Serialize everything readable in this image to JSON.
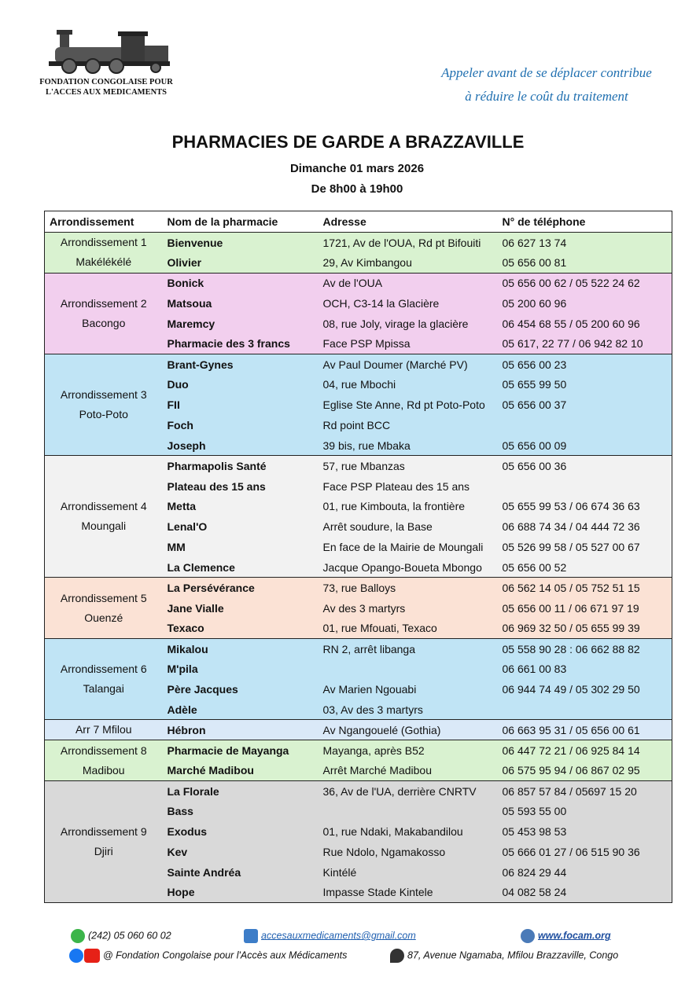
{
  "header": {
    "org_line1": "FONDATION CONGOLAISE POUR",
    "org_line2": "L'ACCES AUX MEDICAMENTS",
    "slogan_line1": "Appeler avant de se déplacer contribue",
    "slogan_line2": "à réduire le coût du traitement"
  },
  "title": "PHARMACIES DE GARDE A BRAZZAVILLE",
  "date": "Dimanche 01 mars 2026",
  "hours": "De 8h00 à 19h00",
  "table": {
    "columns": [
      "Arrondissement",
      "Nom de la pharmacie",
      "Adresse",
      "N° de téléphone"
    ],
    "groups": [
      {
        "name": "Arrondissement 1",
        "area": "Makélékélé",
        "color": "#d9f2d0",
        "rows": [
          {
            "name": "Bienvenue",
            "address": "1721, Av de l'OUA, Rd pt Bifouiti",
            "phone": "06 627 13 74"
          },
          {
            "name": "Olivier",
            "address": "29, Av Kimbangou",
            "phone": "05 656 00 81"
          }
        ]
      },
      {
        "name": "Arrondissement 2",
        "area": "Bacongo",
        "color": "#f2cfee",
        "rows": [
          {
            "name": "Bonick",
            "address": "Av de l'OUA",
            "phone": "05 656 00 62 / 05 522 24 62"
          },
          {
            "name": "Matsoua",
            "address": "OCH, C3-14 la Glacière",
            "phone": "05 200 60 96"
          },
          {
            "name": "Maremcy",
            "address": "08, rue Joly, virage la glacière",
            "phone": "06 454 68 55 / 05 200 60 96"
          },
          {
            "name": "Pharmacie des 3 francs",
            "address": "Face PSP Mpissa",
            "phone": "05 617, 22 77 / 06 942 82 10"
          }
        ]
      },
      {
        "name": "Arrondissement 3",
        "area": "Poto-Poto",
        "color": "#c0e4f5",
        "rows": [
          {
            "name": "Brant-Gynes",
            "address": "Av Paul Doumer (Marché PV)",
            "phone": "05 656 00 23"
          },
          {
            "name": "Duo",
            "address": "04, rue Mbochi",
            "phone": "05 655 99 50"
          },
          {
            "name": "FII",
            "address": "Eglise Ste Anne, Rd pt Poto-Poto",
            "phone": "05 656 00 37"
          },
          {
            "name": "Foch",
            "address": "Rd point BCC"
          },
          {
            "name": "Joseph",
            "address": "39 bis, rue Mbaka",
            "phone": "05 656 00 09"
          }
        ]
      },
      {
        "name": "Arrondissement 4",
        "area": "Moungali",
        "color": "#f2f2f2",
        "rows": [
          {
            "name": "Pharmapolis Santé",
            "address": "57, rue Mbanzas",
            "phone": "05 656 00 36"
          },
          {
            "name": "Plateau des 15 ans",
            "address": "Face PSP Plateau des 15 ans"
          },
          {
            "name": "Metta",
            "address": "01, rue Kimbouta, la frontière",
            "phone": "05 655 99 53 / 06 674 36 63"
          },
          {
            "name": "Lenal'O",
            "address": "Arrêt soudure, la Base",
            "phone": "06 688 74 34 / 04 444 72 36"
          },
          {
            "name": "MM",
            "address": "En face de la Mairie de Moungali",
            "phone": "05 526 99 58 / 05 527 00 67"
          },
          {
            "name": "La Clemence",
            "address": "Jacque Opango-Boueta Mbongo",
            "phone": "05 656 00 52"
          }
        ]
      },
      {
        "name": "Arrondissement 5",
        "area": "Ouenzé",
        "color": "#fbe2d5",
        "rows": [
          {
            "name": "La Persévérance",
            "address": "73, rue Balloys",
            "phone": "06 562 14 05 / 05 752 51 15"
          },
          {
            "name": "Jane Vialle",
            "address": "Av des 3 martyrs",
            "phone": "05 656 00 11 / 06 671 97 19"
          },
          {
            "name": "Texaco",
            "address": "01, rue Mfouati, Texaco",
            "phone": "06 969 32 50 / 05 655 99 39"
          }
        ]
      },
      {
        "name": "Arrondissement 6",
        "area": "Talangai",
        "color": "#c0e4f5",
        "rows": [
          {
            "name": "Mikalou",
            "address": "RN 2, arrêt libanga",
            "phone": "05 558 90 28 : 06 662 88 82"
          },
          {
            "name": "M'pila",
            "phone": "06 661 00 83"
          },
          {
            "name": "Père Jacques",
            "address": "Av Marien Ngouabi",
            "phone": "06 944 74 49 / 05 302 29 50"
          },
          {
            "name": "Adèle",
            "address": "03, Av des 3 martyrs"
          }
        ]
      },
      {
        "name": "Arr 7  Mfilou",
        "color": "#dae9f8",
        "rows": [
          {
            "name": "Hébron",
            "address": "Av Ngangouelé (Gothia)",
            "phone": "06 663 95 31 / 05 656 00 61"
          }
        ]
      },
      {
        "name": "Arrondissement 8",
        "area": "Madibou",
        "color": "#d9f2d0",
        "rows": [
          {
            "name": "Pharmacie de Mayanga",
            "address": "Mayanga, après B52",
            "phone": "06 447 72 21 / 06 925 84 14"
          },
          {
            "name": "Marché Madibou",
            "address": "Arrêt Marché Madibou",
            "phone": "06 575 95 94 / 06 867 02 95"
          }
        ]
      },
      {
        "name": "Arrondissement 9",
        "area": "Djiri",
        "color": "#d9d9d9",
        "rows": [
          {
            "name": "La Florale",
            "address": "36, Av de l'UA, derrière CNRTV",
            "phone": "06 857 57 84 / 05697 15 20"
          },
          {
            "name": "Bass",
            "phone": "05 593 55 00"
          },
          {
            "name": "Exodus",
            "address": "01, rue Ndaki, Makabandilou",
            "phone": "05 453 98 53"
          },
          {
            "name": "Kev",
            "address": "Rue Ndolo, Ngamakosso",
            "phone": "05 666 01 27 / 06 515 90 36"
          },
          {
            "name": "Sainte Andréa",
            "address": "Kintélé",
            "phone": "06 824 29 44"
          },
          {
            "name": "Hope",
            "address": "Impasse Stade Kintele",
            "phone": "04 082 58 24"
          }
        ]
      }
    ]
  },
  "footer": {
    "phone": "(242) 05 060 60 02",
    "email": "accesauxmedicaments@gmail.com",
    "website": "www.focam.org",
    "social": "@ Fondation Congolaise pour l'Accès aux Médicaments",
    "address": "87, Avenue Ngamaba, Mfilou Brazzaville, Congo"
  }
}
